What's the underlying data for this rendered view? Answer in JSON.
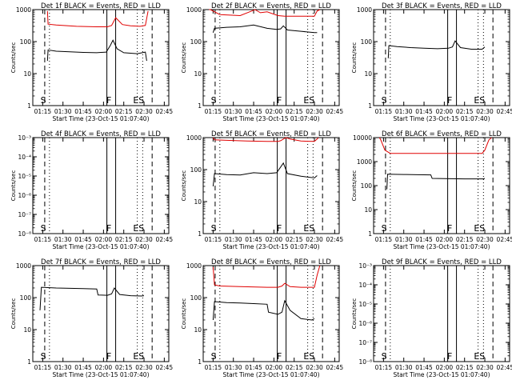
{
  "x_tick_labels": [
    "01:15",
    "01:30",
    "01:45",
    "02:00",
    "02:15",
    "02:30",
    "02:45"
  ],
  "xlabel": "Start Time (23-Oct-15 01:07:40)",
  "ylabel": "Counts/sec",
  "colors": {
    "events": "#000000",
    "lld": "#e00000",
    "axes": "#000000"
  },
  "chart_data": [
    {
      "type": "line",
      "title": "Det 1f BLACK = Events, RED = LLD",
      "yscale": "log",
      "ylim": [
        1,
        1000
      ],
      "y_ticks": [
        1,
        10,
        100,
        1000
      ],
      "y_tick_labels": [
        "1",
        "10",
        "100",
        "1000"
      ],
      "markers": [
        "S",
        "F",
        "ES"
      ],
      "series": [
        {
          "key": "lld",
          "x": [
            "01:18:30",
            "01:19",
            "01:25",
            "01:40",
            "01:55",
            "02:03",
            "02:06",
            "02:09",
            "02:14",
            "02:20",
            "02:27",
            "02:31",
            "02:33"
          ],
          "y": [
            900,
            350,
            330,
            300,
            290,
            290,
            320,
            560,
            340,
            310,
            300,
            320,
            900
          ]
        },
        {
          "key": "events",
          "x": [
            "01:18:30",
            "01:19",
            "01:25",
            "01:35",
            "01:45",
            "01:55",
            "02:02",
            "02:05",
            "02:07",
            "02:10",
            "02:15",
            "02:25",
            "02:31",
            "02:32"
          ],
          "y": [
            25,
            55,
            50,
            48,
            46,
            45,
            47,
            75,
            110,
            60,
            45,
            42,
            47,
            25
          ]
        }
      ]
    },
    {
      "type": "line",
      "title": "Det 2f BLACK = Events, RED = LLD",
      "yscale": "log",
      "ylim": [
        1,
        1000
      ],
      "y_ticks": [
        1,
        10,
        100,
        1000
      ],
      "y_tick_labels": [
        "1",
        "10",
        "100",
        "1000"
      ],
      "markers": [
        "S",
        "F",
        "ES"
      ],
      "series": [
        {
          "key": "lld",
          "x": [
            "01:12",
            "01:13",
            "01:15",
            "01:20",
            "01:35",
            "01:42",
            "01:46",
            "01:50",
            "01:55",
            "02:03",
            "02:08",
            "02:13",
            "02:30",
            "02:32",
            "02:34"
          ],
          "y": [
            1000,
            1000,
            900,
            700,
            650,
            850,
            1000,
            800,
            850,
            650,
            620,
            620,
            620,
            900,
            1000
          ]
        },
        {
          "key": "events",
          "x": [
            "01:15",
            "01:16",
            "01:25",
            "01:35",
            "01:45",
            "01:55",
            "02:02",
            "02:05",
            "02:07",
            "02:10",
            "02:20",
            "02:30",
            "02:32"
          ],
          "y": [
            190,
            260,
            280,
            290,
            330,
            260,
            240,
            250,
            310,
            230,
            210,
            190,
            190
          ]
        }
      ]
    },
    {
      "type": "line",
      "title": "Det 3f BLACK = Events, RED = LLD",
      "yscale": "log",
      "ylim": [
        1,
        1000
      ],
      "y_ticks": [
        1,
        10,
        100,
        1000
      ],
      "y_tick_labels": [
        "1",
        "10",
        "100",
        "1000"
      ],
      "markers": [
        "S",
        "F",
        "ES"
      ],
      "series": [
        {
          "key": "events",
          "x": [
            "01:18:30",
            "01:19",
            "01:25",
            "01:35",
            "01:45",
            "01:55",
            "02:03",
            "02:06",
            "02:08",
            "02:12",
            "02:20",
            "02:28",
            "02:30"
          ],
          "y": [
            30,
            75,
            70,
            65,
            62,
            60,
            62,
            68,
            105,
            65,
            58,
            58,
            68
          ]
        }
      ]
    },
    {
      "type": "line",
      "title": "Det 4f BLACK = Events, RED = LLD",
      "yscale": "log",
      "ylim": [
        1e-08,
        0.001
      ],
      "y_ticks": [
        1e-08,
        1e-07,
        1e-06,
        1e-05,
        0.0001,
        0.001
      ],
      "y_tick_labels": [
        "10⁻⁸",
        "10⁻⁷",
        "10⁻⁶",
        "10⁻⁵",
        "10⁻⁴",
        "10⁻³"
      ],
      "markers": [
        "S",
        "F",
        "ES"
      ],
      "series": []
    },
    {
      "type": "line",
      "title": "Det 5f BLACK = Events, RED = LLD",
      "yscale": "log",
      "ylim": [
        1,
        1000
      ],
      "y_ticks": [
        1,
        10,
        100,
        1000
      ],
      "y_tick_labels": [
        "1",
        "10",
        "100",
        "1000"
      ],
      "markers": [
        "S",
        "F",
        "ES"
      ],
      "series": [
        {
          "key": "lld",
          "x": [
            "01:15",
            "01:16",
            "01:25",
            "01:40",
            "01:55",
            "02:03",
            "02:05",
            "02:07",
            "02:09",
            "02:12",
            "02:20",
            "02:30",
            "02:32",
            "02:33"
          ],
          "y": [
            1000,
            850,
            820,
            780,
            760,
            760,
            800,
            900,
            1000,
            900,
            780,
            760,
            900,
            1000
          ]
        },
        {
          "key": "events",
          "x": [
            "01:15",
            "01:16",
            "01:25",
            "01:35",
            "01:45",
            "01:55",
            "02:02",
            "02:05",
            "02:07",
            "02:10",
            "02:20",
            "02:30",
            "02:32"
          ],
          "y": [
            30,
            75,
            70,
            68,
            80,
            75,
            80,
            120,
            160,
            75,
            62,
            55,
            65
          ]
        }
      ]
    },
    {
      "type": "line",
      "title": "Det 6f BLACK = Events, RED = LLD",
      "yscale": "log",
      "ylim": [
        1,
        10000
      ],
      "y_ticks": [
        1,
        10,
        100,
        1000,
        10000
      ],
      "y_tick_labels": [
        "1",
        "10",
        "100",
        "1000",
        "10000"
      ],
      "markers": [
        "S",
        "F",
        "ES"
      ],
      "series": [
        {
          "key": "lld",
          "x": [
            "01:12",
            "01:13",
            "01:16",
            "01:20",
            "01:30",
            "01:45",
            "02:00",
            "02:15",
            "02:28",
            "02:30",
            "02:33",
            "02:35"
          ],
          "y": [
            10000,
            8000,
            3000,
            2200,
            2200,
            2200,
            2200,
            2200,
            2200,
            3000,
            8000,
            10000
          ]
        },
        {
          "key": "events",
          "x": [
            "01:17:30",
            "01:18",
            "01:30",
            "01:40",
            "01:50",
            "01:51",
            "02:00",
            "02:15",
            "02:29",
            "02:30"
          ],
          "y": [
            70,
            300,
            290,
            285,
            280,
            200,
            195,
            190,
            190,
            200
          ]
        }
      ]
    },
    {
      "type": "line",
      "title": "Det 7f BLACK = Events, RED = LLD",
      "yscale": "log",
      "ylim": [
        1,
        1000
      ],
      "y_ticks": [
        1,
        10,
        100,
        1000
      ],
      "y_tick_labels": [
        "1",
        "10",
        "100",
        "1000"
      ],
      "markers": [
        "S",
        "F",
        "ES"
      ],
      "series": [
        {
          "key": "events",
          "x": [
            "01:13",
            "01:14",
            "01:25",
            "01:35",
            "01:45",
            "01:55",
            "01:56",
            "02:03",
            "02:06",
            "02:08",
            "02:12",
            "02:20",
            "02:28",
            "02:30"
          ],
          "y": [
            40,
            210,
            200,
            195,
            190,
            185,
            120,
            118,
            130,
            200,
            125,
            115,
            112,
            115
          ]
        }
      ]
    },
    {
      "type": "line",
      "title": "Det 8f BLACK = Events, RED = LLD",
      "yscale": "log",
      "ylim": [
        1,
        1000
      ],
      "y_ticks": [
        1,
        10,
        100,
        1000
      ],
      "y_tick_labels": [
        "1",
        "10",
        "100",
        "1000"
      ],
      "markers": [
        "S",
        "F",
        "ES"
      ],
      "series": [
        {
          "key": "lld",
          "x": [
            "01:15",
            "01:16",
            "01:20",
            "01:35",
            "01:55",
            "02:03",
            "02:06",
            "02:08",
            "02:12",
            "02:20",
            "02:30",
            "02:32",
            "02:34"
          ],
          "y": [
            900,
            250,
            230,
            220,
            210,
            210,
            230,
            280,
            220,
            210,
            210,
            500,
            1000
          ]
        },
        {
          "key": "events",
          "x": [
            "01:15",
            "01:16",
            "01:25",
            "01:35",
            "01:45",
            "01:55",
            "01:56",
            "02:03",
            "02:06",
            "02:08",
            "02:12",
            "02:20",
            "02:28",
            "02:30"
          ],
          "y": [
            20,
            75,
            70,
            68,
            65,
            62,
            35,
            30,
            35,
            80,
            40,
            22,
            20,
            22
          ]
        }
      ]
    },
    {
      "type": "line",
      "title": "Det 9f BLACK = Events, RED = LLD",
      "yscale": "log",
      "ylim": [
        1e-08,
        0.001
      ],
      "y_ticks": [
        1e-08,
        1e-07,
        1e-06,
        1e-05,
        0.0001,
        0.001
      ],
      "y_tick_labels": [
        "10⁻⁸",
        "10⁻⁷",
        "10⁻⁶",
        "10⁻⁵",
        "10⁻⁴",
        "10⁻³"
      ],
      "markers": [
        "S",
        "F",
        "ES"
      ],
      "series": []
    }
  ]
}
